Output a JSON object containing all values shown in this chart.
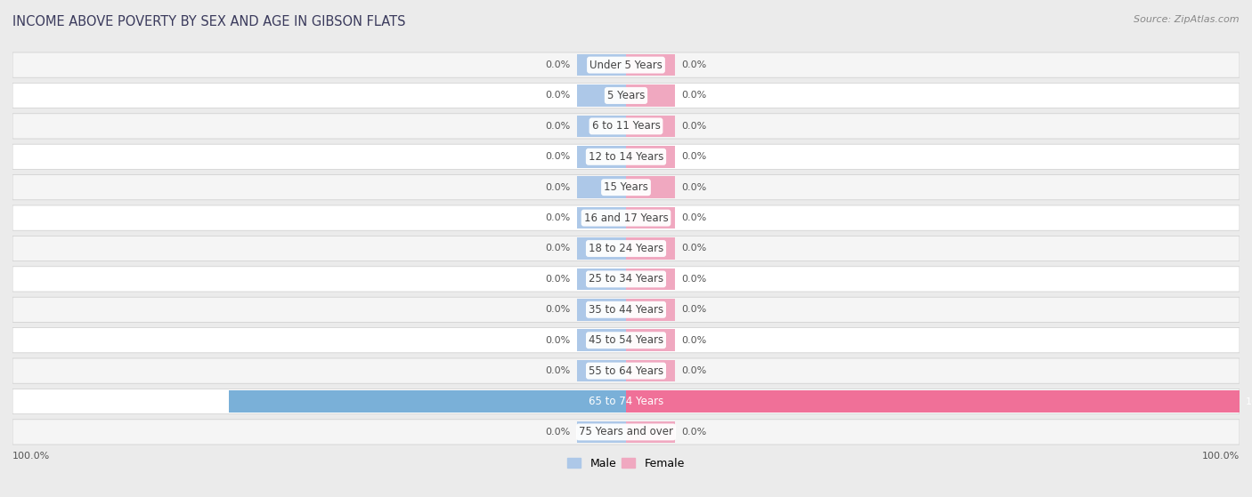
{
  "title": "INCOME ABOVE POVERTY BY SEX AND AGE IN GIBSON FLATS",
  "source": "Source: ZipAtlas.com",
  "categories": [
    "Under 5 Years",
    "5 Years",
    "6 to 11 Years",
    "12 to 14 Years",
    "15 Years",
    "16 and 17 Years",
    "18 to 24 Years",
    "25 to 34 Years",
    "35 to 44 Years",
    "45 to 54 Years",
    "55 to 64 Years",
    "65 to 74 Years",
    "75 Years and over"
  ],
  "male_values": [
    0.0,
    0.0,
    0.0,
    0.0,
    0.0,
    0.0,
    0.0,
    0.0,
    0.0,
    0.0,
    0.0,
    64.7,
    0.0
  ],
  "female_values": [
    0.0,
    0.0,
    0.0,
    0.0,
    0.0,
    0.0,
    0.0,
    0.0,
    0.0,
    0.0,
    0.0,
    100.0,
    0.0
  ],
  "male_color_light": "#adc8e8",
  "female_color_light": "#f0a8c0",
  "male_color_full": "#7ab0d8",
  "female_color_full": "#f07098",
  "bg_color": "#ebebeb",
  "row_color_light": "#f5f5f5",
  "row_color_dark": "#e8e8e8",
  "title_color": "#3a3a5c",
  "source_color": "#888888",
  "label_color": "#555555",
  "bar_label_color_zero": "#555555",
  "bar_label_color_nonzero": "#ffffff",
  "max_value": 100,
  "zero_bar_width": 8,
  "title_fontsize": 10.5,
  "source_fontsize": 8,
  "cat_fontsize": 8.5,
  "val_fontsize": 8,
  "legend_fontsize": 9
}
